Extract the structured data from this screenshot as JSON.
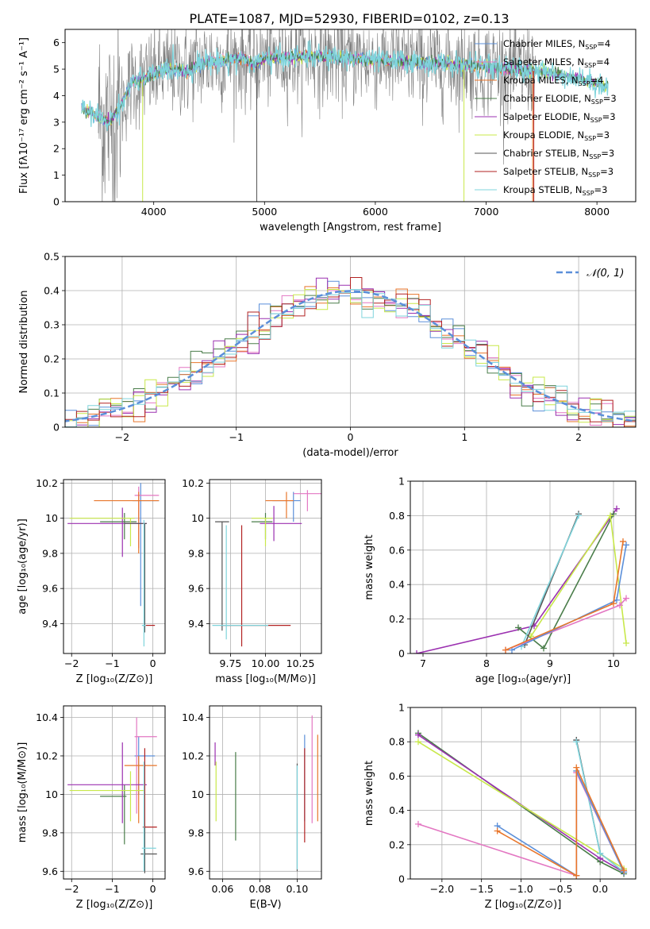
{
  "figure": {
    "title": "PLATE=1087, MJD=52930, FIBERID=0102, z=0.13"
  },
  "colors": {
    "chabrier_miles": "#5b8fd9",
    "salpeter_miles": "#e377c2",
    "kroupa_miles": "#e8762b",
    "chabrier_elodie": "#4a7d4a",
    "salpeter_elodie": "#9b30b0",
    "kroupa_elodie": "#c8e84a",
    "chabrier_stelib": "#555555",
    "salpeter_stelib": "#b22222",
    "kroupa_stelib": "#7fd4dc",
    "data": "#808080",
    "normal": "#5b8fd9"
  },
  "chart_data": [
    {
      "id": "spectrum",
      "type": "line",
      "title": "PLATE=1087, MJD=52930, FIBERID=0102, z=0.13",
      "xlabel": "wavelength [Angstrom, rest frame]",
      "ylabel": "Flux [fλ10⁻¹⁷ erg cm⁻² s⁻¹ A⁻¹]",
      "xlim": [
        3200,
        8350
      ],
      "ylim": [
        0,
        6.5
      ],
      "xticks": [
        4000,
        5000,
        6000,
        7000,
        8000
      ],
      "yticks": [
        0,
        1,
        2,
        3,
        4,
        5,
        6
      ],
      "grid": false,
      "legend_position": "top-right",
      "legend": [
        {
          "label": "Chabrier MILES, N",
          "sub": "SSP",
          "suffix": "=4",
          "color_key": "chabrier_miles"
        },
        {
          "label": "Salpeter MILES, N",
          "sub": "SSP",
          "suffix": "=4",
          "color_key": "salpeter_miles"
        },
        {
          "label": "Kroupa MILES, N",
          "sub": "SSP",
          "suffix": "=4",
          "color_key": "kroupa_miles"
        },
        {
          "label": "Chabrier ELODIE, N",
          "sub": "SSP",
          "suffix": "=3",
          "color_key": "chabrier_elodie"
        },
        {
          "label": "Salpeter ELODIE, N",
          "sub": "SSP",
          "suffix": "=3",
          "color_key": "salpeter_elodie"
        },
        {
          "label": "Kroupa ELODIE, N",
          "sub": "SSP",
          "suffix": "=3",
          "color_key": "kroupa_elodie"
        },
        {
          "label": "Chabrier STELIB, N",
          "sub": "SSP",
          "suffix": "=3",
          "color_key": "chabrier_stelib"
        },
        {
          "label": "Salpeter STELIB, N",
          "sub": "SSP",
          "suffix": "=3",
          "color_key": "salpeter_stelib"
        },
        {
          "label": "Kroupa STELIB, N",
          "sub": "SSP",
          "suffix": "=3",
          "color_key": "kroupa_stelib"
        }
      ],
      "continuum": {
        "x": [
          3350,
          3500,
          3600,
          3700,
          3800,
          3900,
          4000,
          4100,
          4200,
          4300,
          4400,
          4500,
          4600,
          4700,
          4800,
          4900,
          5000,
          5200,
          5400,
          5600,
          5800,
          6000,
          6200,
          6400,
          6600,
          6800,
          7000,
          7200,
          7400,
          7600,
          7800,
          8000,
          8100
        ],
        "y": [
          3.5,
          3.2,
          3.0,
          3.6,
          4.5,
          4.6,
          4.8,
          5.0,
          5.0,
          4.9,
          5.2,
          5.3,
          5.3,
          5.35,
          5.4,
          5.2,
          5.4,
          5.45,
          5.5,
          5.45,
          5.4,
          5.35,
          5.3,
          5.25,
          5.2,
          5.15,
          5.1,
          5.0,
          4.95,
          4.85,
          4.7,
          4.45,
          4.35
        ]
      },
      "data_noise_amplitude": 0.9,
      "data_range": [
        3500,
        7450
      ]
    },
    {
      "id": "residuals",
      "type": "histogram",
      "xlabel": "(data-model)/error",
      "ylabel": "Normed distribution",
      "xlim": [
        -2.5,
        2.5
      ],
      "ylim": [
        0,
        0.5
      ],
      "xticks": [
        -2,
        -1,
        0,
        1,
        2
      ],
      "yticks": [
        0.0,
        0.1,
        0.2,
        0.3,
        0.4,
        0.5
      ],
      "grid": true,
      "bin_width": 0.1,
      "legend_position": "top-right",
      "legend": [
        {
          "label": "𝒩(0, 1)",
          "color_key": "normal",
          "dashed": true
        }
      ]
    },
    {
      "id": "age_vs_Z",
      "type": "errorbar",
      "xlabel": "Z [log₁₀(Z/Z⊙)]",
      "ylabel": "age  [log₁₀(age/yr)]",
      "xlim": [
        -2.2,
        0.3
      ],
      "ylim": [
        9.23,
        10.22
      ],
      "xticks": [
        -2,
        -1,
        0
      ],
      "yticks": [
        9.4,
        9.6,
        9.8,
        10.0,
        10.2
      ],
      "grid": true,
      "points": [
        {
          "color_key": "chabrier_miles",
          "x": -0.3,
          "y": 10.1,
          "xerr": [
            0.2,
            0.45
          ],
          "yerr": [
            0.6,
            0.1
          ]
        },
        {
          "color_key": "salpeter_miles",
          "x": -0.35,
          "y": 10.13,
          "xerr": [
            0.1,
            0.5
          ],
          "yerr": [
            0.3,
            0.05
          ]
        },
        {
          "color_key": "kroupa_miles",
          "x": -0.35,
          "y": 10.1,
          "xerr": [
            1.1,
            0.5
          ],
          "yerr": [
            0.3,
            0.05
          ]
        },
        {
          "color_key": "chabrier_elodie",
          "x": -0.7,
          "y": 9.98,
          "xerr": [
            0.6,
            0.3
          ],
          "yerr": [
            0.1,
            0.05
          ]
        },
        {
          "color_key": "salpeter_elodie",
          "x": -0.75,
          "y": 9.97,
          "xerr": [
            1.35,
            0.6
          ],
          "yerr": [
            0.19,
            0.09
          ]
        },
        {
          "color_key": "kroupa_elodie",
          "x": -0.55,
          "y": 10.0,
          "xerr": [
            1.5,
            0.1
          ],
          "yerr": [
            0.16,
            0.0
          ]
        },
        {
          "color_key": "chabrier_stelib",
          "x": -0.2,
          "y": 9.97,
          "xerr": [
            0.5,
            0.05
          ],
          "yerr": [
            0.62,
            0.0
          ]
        },
        {
          "color_key": "salpeter_stelib",
          "x": -0.15,
          "y": 9.39,
          "xerr": [
            0.1,
            0.2
          ],
          "yerr": [
            0.0,
            0.0
          ]
        },
        {
          "color_key": "kroupa_stelib",
          "x": -0.22,
          "y": 9.39,
          "xerr": [
            0.05,
            0.05
          ],
          "yerr": [
            0.12,
            0.6
          ]
        }
      ]
    },
    {
      "id": "age_vs_mass",
      "type": "errorbar",
      "xlabel": "mass [log₁₀(M/M⊙)]",
      "ylabel": "",
      "xlim": [
        9.6,
        10.4
      ],
      "ylim": [
        9.23,
        10.22
      ],
      "xticks": [
        9.75,
        10.0,
        10.25
      ],
      "xticklabels": [
        "9.75",
        "10.00",
        "10.25"
      ],
      "yticks": [
        9.4,
        9.6,
        9.8,
        10.0,
        10.2
      ],
      "grid": true,
      "points": [
        {
          "color_key": "chabrier_miles",
          "x": 10.2,
          "y": 10.1,
          "xerr": [
            0.15,
            0.05
          ],
          "yerr": [
            0.12,
            0.05
          ]
        },
        {
          "color_key": "salpeter_miles",
          "x": 10.3,
          "y": 10.14,
          "xerr": [
            0.1,
            0.1
          ],
          "yerr": [
            0.1,
            0.02
          ]
        },
        {
          "color_key": "kroupa_miles",
          "x": 10.15,
          "y": 10.1,
          "xerr": [
            0.15,
            0.05
          ],
          "yerr": [
            0.1,
            0.05
          ]
        },
        {
          "color_key": "chabrier_elodie",
          "x": 10.0,
          "y": 9.98,
          "xerr": [
            0.1,
            0.05
          ],
          "yerr": [
            0.1,
            0.05
          ]
        },
        {
          "color_key": "salpeter_elodie",
          "x": 10.06,
          "y": 9.97,
          "xerr": [
            0.1,
            0.2
          ],
          "yerr": [
            0.1,
            0.1
          ]
        },
        {
          "color_key": "kroupa_elodie",
          "x": 10.0,
          "y": 10.0,
          "xerr": [
            0.1,
            0.05
          ],
          "yerr": [
            0.16,
            0.0
          ]
        },
        {
          "color_key": "chabrier_stelib",
          "x": 9.69,
          "y": 9.98,
          "xerr": [
            0.05,
            0.05
          ],
          "yerr": [
            0.62,
            0.0
          ]
        },
        {
          "color_key": "salpeter_stelib",
          "x": 9.83,
          "y": 9.39,
          "xerr": [
            0.15,
            0.35
          ],
          "yerr": [
            0.12,
            0.57
          ]
        },
        {
          "color_key": "kroupa_stelib",
          "x": 9.72,
          "y": 9.39,
          "xerr": [
            0.1,
            0.3
          ],
          "yerr": [
            0.08,
            0.57
          ]
        }
      ]
    },
    {
      "id": "weight_vs_age",
      "type": "line",
      "xlabel": "age  [log₁₀(age/yr)]",
      "ylabel": "mass weight",
      "xlim": [
        6.8,
        10.35
      ],
      "ylim": [
        0,
        1.0
      ],
      "xticks": [
        7,
        8,
        9,
        10
      ],
      "yticks": [
        0.0,
        0.2,
        0.4,
        0.6,
        0.8,
        1.0
      ],
      "grid": true,
      "series": [
        {
          "color_key": "salpeter_elodie",
          "x": [
            6.9,
            8.75,
            10.05
          ],
          "y": [
            0.0,
            0.16,
            0.84
          ]
        },
        {
          "color_key": "chabrier_elodie",
          "x": [
            8.5,
            8.9,
            10.0
          ],
          "y": [
            0.15,
            0.03,
            0.81
          ]
        },
        {
          "color_key": "kroupa_elodie",
          "x": [
            8.7,
            9.95,
            10.2
          ],
          "y": [
            0.1,
            0.8,
            0.06
          ]
        },
        {
          "color_key": "chabrier_stelib",
          "x": [
            8.6,
            9.45
          ],
          "y": [
            0.05,
            0.81
          ]
        },
        {
          "color_key": "kroupa_stelib",
          "x": [
            8.55,
            9.45
          ],
          "y": [
            0.04,
            0.8
          ]
        },
        {
          "color_key": "salpeter_miles",
          "x": [
            8.3,
            10.1,
            10.2
          ],
          "y": [
            0.02,
            0.28,
            0.32
          ]
        },
        {
          "color_key": "chabrier_miles",
          "x": [
            8.4,
            10.05,
            10.2
          ],
          "y": [
            0.02,
            0.31,
            0.63
          ]
        },
        {
          "color_key": "kroupa_miles",
          "x": [
            8.3,
            10.0,
            10.15
          ],
          "y": [
            0.02,
            0.29,
            0.65
          ]
        }
      ]
    },
    {
      "id": "mass_vs_Z",
      "type": "errorbar",
      "xlabel": "Z [log₁₀(Z/Z⊙)]",
      "ylabel": "mass [log₁₀(M/M⊙)]",
      "xlim": [
        -2.2,
        0.3
      ],
      "ylim": [
        9.56,
        10.46
      ],
      "xticks": [
        -2,
        -1,
        0
      ],
      "yticks": [
        9.6,
        9.8,
        10.0,
        10.2,
        10.4
      ],
      "grid": true,
      "points": [
        {
          "color_key": "chabrier_miles",
          "x": -0.35,
          "y": 10.2,
          "xerr": [
            0.1,
            0.4
          ],
          "yerr": [
            0.2,
            0.1
          ]
        },
        {
          "color_key": "salpeter_miles",
          "x": -0.4,
          "y": 10.3,
          "xerr": [
            0.05,
            0.5
          ],
          "yerr": [
            0.4,
            0.1
          ]
        },
        {
          "color_key": "kroupa_miles",
          "x": -0.35,
          "y": 10.15,
          "xerr": [
            0.35,
            0.45
          ],
          "yerr": [
            0.3,
            0.05
          ]
        },
        {
          "color_key": "chabrier_elodie",
          "x": -0.7,
          "y": 9.99,
          "xerr": [
            0.6,
            0.05
          ],
          "yerr": [
            0.25,
            0.06
          ]
        },
        {
          "color_key": "salpeter_elodie",
          "x": -0.75,
          "y": 10.05,
          "xerr": [
            1.35,
            0.6
          ],
          "yerr": [
            0.2,
            0.22
          ]
        },
        {
          "color_key": "kroupa_elodie",
          "x": -0.55,
          "y": 10.02,
          "xerr": [
            1.5,
            0.35
          ],
          "yerr": [
            0.16,
            0.1
          ]
        },
        {
          "color_key": "chabrier_stelib",
          "x": -0.2,
          "y": 9.69,
          "xerr": [
            0.1,
            0.3
          ],
          "yerr": [
            0.1,
            0.31
          ]
        },
        {
          "color_key": "salpeter_stelib",
          "x": -0.2,
          "y": 9.83,
          "xerr": [
            0.05,
            0.3
          ],
          "yerr": [
            0.0,
            0.41
          ]
        },
        {
          "color_key": "kroupa_stelib",
          "x": -0.22,
          "y": 9.72,
          "xerr": [
            0.05,
            0.3
          ],
          "yerr": [
            0.12,
            0.45
          ]
        }
      ]
    },
    {
      "id": "mass_vs_EBV",
      "type": "errorbar",
      "xlabel": "E(B-V)",
      "ylabel": "",
      "xlim": [
        0.053,
        0.113
      ],
      "ylim": [
        9.56,
        10.46
      ],
      "xticks": [
        0.06,
        0.08,
        0.1
      ],
      "xticklabels": [
        "0.06",
        "0.08",
        "0.10"
      ],
      "yticks": [
        9.6,
        9.8,
        10.0,
        10.2,
        10.4
      ],
      "grid": true,
      "points": [
        {
          "color_key": "chabrier_miles",
          "x": 0.104,
          "y": 10.19,
          "xerr": [
            0,
            0
          ],
          "yerr": [
            0.33,
            0.12
          ]
        },
        {
          "color_key": "salpeter_miles",
          "x": 0.108,
          "y": 10.15,
          "xerr": [
            0,
            0
          ],
          "yerr": [
            0.3,
            0.26
          ]
        },
        {
          "color_key": "kroupa_miles",
          "x": 0.111,
          "y": 10.08,
          "xerr": [
            0,
            0
          ],
          "yerr": [
            0.22,
            0.23
          ]
        },
        {
          "color_key": "chabrier_elodie",
          "x": 0.067,
          "y": 10.0,
          "xerr": [
            0,
            0
          ],
          "yerr": [
            0.24,
            0.22
          ]
        },
        {
          "color_key": "salpeter_elodie",
          "x": 0.056,
          "y": 10.2,
          "xerr": [
            0,
            0
          ],
          "yerr": [
            0.05,
            0.07
          ]
        },
        {
          "color_key": "kroupa_elodie",
          "x": 0.0565,
          "y": 10.02,
          "xerr": [
            0,
            0
          ],
          "yerr": [
            0.16,
            0.15
          ]
        },
        {
          "color_key": "chabrier_stelib",
          "x": 0.1,
          "y": 9.88,
          "xerr": [
            0,
            0
          ],
          "yerr": [
            0.28,
            0.28
          ]
        },
        {
          "color_key": "salpeter_stelib",
          "x": 0.104,
          "y": 10.0,
          "xerr": [
            0,
            0
          ],
          "yerr": [
            0.25,
            0.24
          ]
        },
        {
          "color_key": "kroupa_stelib",
          "x": 0.1,
          "y": 9.88,
          "xerr": [
            0,
            0
          ],
          "yerr": [
            0.27,
            0.27
          ]
        }
      ]
    },
    {
      "id": "weight_vs_Z",
      "type": "line",
      "xlabel": "Z [log₁₀(Z/Z⊙)]",
      "ylabel": "mass weight",
      "xlim": [
        -2.4,
        0.45
      ],
      "ylim": [
        0,
        1.0
      ],
      "xticks": [
        -2.0,
        -1.5,
        -1.0,
        -0.5,
        0.0
      ],
      "xticklabels": [
        "−2.0",
        "−1.5",
        "−1.0",
        "−0.5",
        "0.0"
      ],
      "yticks": [
        0.0,
        0.2,
        0.4,
        0.6,
        0.8,
        1.0
      ],
      "grid": true,
      "series": [
        {
          "color_key": "chabrier_elodie",
          "x": [
            -2.3,
            0.0,
            0.3
          ],
          "y": [
            0.85,
            0.1,
            0.03
          ]
        },
        {
          "color_key": "salpeter_elodie",
          "x": [
            -2.3,
            0.0,
            0.3
          ],
          "y": [
            0.84,
            0.12,
            0.04
          ]
        },
        {
          "color_key": "kroupa_elodie",
          "x": [
            -2.3,
            0.3
          ],
          "y": [
            0.8,
            0.06
          ]
        },
        {
          "color_key": "chabrier_stelib",
          "x": [
            -0.3,
            0.0,
            0.3
          ],
          "y": [
            0.81,
            0.15,
            0.04
          ]
        },
        {
          "color_key": "kroupa_stelib",
          "x": [
            -0.3,
            0.0,
            0.3
          ],
          "y": [
            0.8,
            0.15,
            0.04
          ]
        },
        {
          "color_key": "salpeter_miles",
          "x": [
            -2.3,
            -0.3,
            -0.3,
            0.3
          ],
          "y": [
            0.32,
            0.02,
            0.62,
            0.04
          ]
        },
        {
          "color_key": "chabrier_miles",
          "x": [
            -1.3,
            -0.3,
            -0.3,
            0.3
          ],
          "y": [
            0.31,
            0.02,
            0.63,
            0.04
          ]
        },
        {
          "color_key": "kroupa_miles",
          "x": [
            -1.3,
            -0.3,
            -0.3,
            0.3
          ],
          "y": [
            0.28,
            0.02,
            0.65,
            0.05
          ]
        }
      ]
    }
  ]
}
